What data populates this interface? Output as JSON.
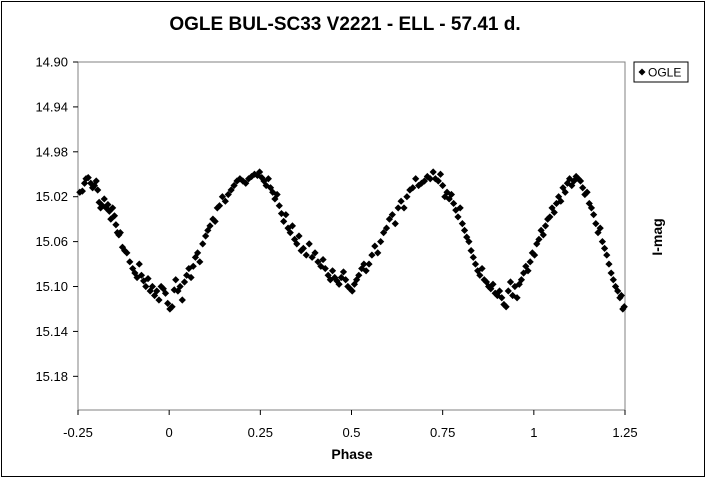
{
  "chart_data": {
    "type": "scatter",
    "title": "OGLE BUL-SC33  V2221 - ELL - 57.41 d.",
    "xlabel": "Phase",
    "ylabel": "I-mag",
    "xlim": [
      -0.25,
      1.25
    ],
    "ylim": [
      14.9,
      15.21
    ],
    "y_inverted": true,
    "x_ticks": [
      "-0.25",
      "0",
      "0.25",
      "0.5",
      "0.75",
      "1",
      "1.25"
    ],
    "x_tick_values": [
      -0.25,
      0,
      0.25,
      0.5,
      0.75,
      1,
      1.25
    ],
    "y_ticks": [
      "14.90",
      "14.94",
      "14.98",
      "15.02",
      "15.06",
      "15.10",
      "15.14",
      "15.18"
    ],
    "y_tick_values": [
      14.9,
      14.94,
      14.98,
      15.02,
      15.06,
      15.1,
      15.14,
      15.18
    ],
    "grid": false,
    "legend_position": "top-right",
    "marker": "diamond",
    "series": [
      {
        "name": "OGLE",
        "color": "#000000",
        "points": [
          [
            -0.245,
            15.016
          ],
          [
            -0.238,
            15.015
          ],
          [
            -0.232,
            15.008
          ],
          [
            -0.228,
            15.004
          ],
          [
            -0.222,
            15.003
          ],
          [
            -0.215,
            15.008
          ],
          [
            -0.21,
            15.012
          ],
          [
            -0.205,
            15.01
          ],
          [
            -0.2,
            15.006
          ],
          [
            -0.196,
            15.014
          ],
          [
            -0.192,
            15.025
          ],
          [
            -0.188,
            15.03
          ],
          [
            -0.183,
            15.028
          ],
          [
            -0.178,
            15.022
          ],
          [
            -0.173,
            15.03
          ],
          [
            -0.168,
            15.027
          ],
          [
            -0.164,
            15.033
          ],
          [
            -0.16,
            15.04
          ],
          [
            -0.155,
            15.03
          ],
          [
            -0.15,
            15.037
          ],
          [
            -0.146,
            15.045
          ],
          [
            -0.142,
            15.052
          ],
          [
            -0.138,
            15.054
          ],
          [
            -0.134,
            15.052
          ],
          [
            -0.128,
            15.065
          ],
          [
            -0.122,
            15.068
          ],
          [
            -0.116,
            15.07
          ],
          [
            -0.108,
            15.078
          ],
          [
            -0.1,
            15.084
          ],
          [
            -0.094,
            15.088
          ],
          [
            -0.088,
            15.092
          ],
          [
            -0.082,
            15.08
          ],
          [
            -0.076,
            15.09
          ],
          [
            -0.07,
            15.095
          ],
          [
            -0.064,
            15.1
          ],
          [
            -0.058,
            15.093
          ],
          [
            -0.052,
            15.104
          ],
          [
            -0.046,
            15.1
          ],
          [
            -0.04,
            15.108
          ],
          [
            -0.034,
            15.104
          ],
          [
            -0.028,
            15.112
          ],
          [
            -0.022,
            15.1
          ],
          [
            -0.016,
            15.102
          ],
          [
            -0.01,
            15.106
          ],
          [
            -0.004,
            15.115
          ],
          [
            0.002,
            15.12
          ],
          [
            0.008,
            15.118
          ],
          [
            0.014,
            15.103
          ],
          [
            0.018,
            15.094
          ],
          [
            0.024,
            15.104
          ],
          [
            0.03,
            15.1
          ],
          [
            0.036,
            15.112
          ],
          [
            0.042,
            15.096
          ],
          [
            0.048,
            15.09
          ],
          [
            0.054,
            15.084
          ],
          [
            0.06,
            15.092
          ],
          [
            0.066,
            15.082
          ],
          [
            0.072,
            15.074
          ],
          [
            0.078,
            15.07
          ],
          [
            0.084,
            15.078
          ],
          [
            0.092,
            15.062
          ],
          [
            0.1,
            15.055
          ],
          [
            0.106,
            15.05
          ],
          [
            0.112,
            15.046
          ],
          [
            0.12,
            15.04
          ],
          [
            0.126,
            15.042
          ],
          [
            0.132,
            15.03
          ],
          [
            0.138,
            15.028
          ],
          [
            0.146,
            15.02
          ],
          [
            0.154,
            15.024
          ],
          [
            0.162,
            15.018
          ],
          [
            0.17,
            15.014
          ],
          [
            0.178,
            15.01
          ],
          [
            0.186,
            15.006
          ],
          [
            0.194,
            15.004
          ],
          [
            0.202,
            15.006
          ],
          [
            0.21,
            15.008
          ],
          [
            0.218,
            15.004
          ],
          [
            0.226,
            15.002
          ],
          [
            0.234,
            15.0
          ],
          [
            0.242,
            15.001
          ],
          [
            0.248,
            14.998
          ],
          [
            0.254,
            15.003
          ],
          [
            0.26,
            15.006
          ],
          [
            0.266,
            15.01
          ],
          [
            0.272,
            15.004
          ],
          [
            0.278,
            15.012
          ],
          [
            0.284,
            15.016
          ],
          [
            0.29,
            15.022
          ],
          [
            0.296,
            15.018
          ],
          [
            0.302,
            15.028
          ],
          [
            0.308,
            15.035
          ],
          [
            0.314,
            15.042
          ],
          [
            0.32,
            15.036
          ],
          [
            0.326,
            15.048
          ],
          [
            0.332,
            15.052
          ],
          [
            0.338,
            15.046
          ],
          [
            0.344,
            15.058
          ],
          [
            0.35,
            15.062
          ],
          [
            0.356,
            15.055
          ],
          [
            0.362,
            15.068
          ],
          [
            0.368,
            15.066
          ],
          [
            0.376,
            15.072
          ],
          [
            0.384,
            15.062
          ],
          [
            0.392,
            15.074
          ],
          [
            0.4,
            15.07
          ],
          [
            0.408,
            15.078
          ],
          [
            0.416,
            15.082
          ],
          [
            0.422,
            15.076
          ],
          [
            0.428,
            15.084
          ],
          [
            0.436,
            15.09
          ],
          [
            0.442,
            15.094
          ],
          [
            0.448,
            15.086
          ],
          [
            0.454,
            15.092
          ],
          [
            0.46,
            15.095
          ],
          [
            0.466,
            15.098
          ],
          [
            0.472,
            15.092
          ],
          [
            0.478,
            15.087
          ],
          [
            0.484,
            15.094
          ],
          [
            0.49,
            15.1
          ],
          [
            0.496,
            15.102
          ],
          [
            0.502,
            15.104
          ],
          [
            0.508,
            15.098
          ],
          [
            0.514,
            15.094
          ],
          [
            0.52,
            15.09
          ],
          [
            0.528,
            15.084
          ],
          [
            0.534,
            15.08
          ],
          [
            0.54,
            15.086
          ],
          [
            0.548,
            15.08
          ],
          [
            0.556,
            15.072
          ],
          [
            0.564,
            15.064
          ],
          [
            0.572,
            15.07
          ],
          [
            0.58,
            15.06
          ],
          [
            0.588,
            15.052
          ],
          [
            0.596,
            15.048
          ],
          [
            0.604,
            15.04
          ],
          [
            0.612,
            15.036
          ],
          [
            0.62,
            15.044
          ],
          [
            0.628,
            15.03
          ],
          [
            0.636,
            15.024
          ],
          [
            0.644,
            15.03
          ],
          [
            0.652,
            15.02
          ],
          [
            0.66,
            15.014
          ],
          [
            0.668,
            15.012
          ],
          [
            0.676,
            15.004
          ],
          [
            0.684,
            15.01
          ],
          [
            0.692,
            15.008
          ],
          [
            0.7,
            15.006
          ],
          [
            0.708,
            15.002
          ],
          [
            0.716,
            15.004
          ],
          [
            0.724,
            14.998
          ],
          [
            0.73,
            15.004
          ],
          [
            0.738,
            15.006
          ],
          [
            0.744,
            15.0
          ],
          [
            0.75,
            15.01
          ],
          [
            0.756,
            15.02
          ],
          [
            0.762,
            15.016
          ],
          [
            0.768,
            15.022
          ],
          [
            0.774,
            15.018
          ],
          [
            0.78,
            15.026
          ],
          [
            0.786,
            15.032
          ],
          [
            0.792,
            15.038
          ],
          [
            0.798,
            15.03
          ],
          [
            0.804,
            15.044
          ],
          [
            0.81,
            15.05
          ],
          [
            0.816,
            15.056
          ],
          [
            0.822,
            15.06
          ],
          [
            0.828,
            15.068
          ],
          [
            0.834,
            15.074
          ],
          [
            0.84,
            15.08
          ],
          [
            0.846,
            15.086
          ],
          [
            0.852,
            15.09
          ],
          [
            0.858,
            15.084
          ],
          [
            0.864,
            15.094
          ],
          [
            0.87,
            15.096
          ],
          [
            0.876,
            15.1
          ],
          [
            0.882,
            15.102
          ],
          [
            0.888,
            15.098
          ],
          [
            0.894,
            15.106
          ],
          [
            0.9,
            15.108
          ],
          [
            0.906,
            15.104
          ],
          [
            0.912,
            15.11
          ],
          [
            0.918,
            15.116
          ],
          [
            0.924,
            15.118
          ],
          [
            0.93,
            15.104
          ],
          [
            0.936,
            15.096
          ],
          [
            0.942,
            15.108
          ],
          [
            0.948,
            15.1
          ],
          [
            0.954,
            15.11
          ],
          [
            0.96,
            15.098
          ],
          [
            0.966,
            15.094
          ],
          [
            0.972,
            15.088
          ],
          [
            0.978,
            15.082
          ],
          [
            0.984,
            15.086
          ],
          [
            0.99,
            15.078
          ],
          [
            0.996,
            15.07
          ],
          [
            1.002,
            15.072
          ],
          [
            1.008,
            15.062
          ],
          [
            1.014,
            15.058
          ],
          [
            1.02,
            15.05
          ],
          [
            1.026,
            15.054
          ],
          [
            1.032,
            15.046
          ],
          [
            1.038,
            15.04
          ],
          [
            1.044,
            15.038
          ],
          [
            1.05,
            15.03
          ],
          [
            1.056,
            15.034
          ],
          [
            1.062,
            15.026
          ],
          [
            1.068,
            15.02
          ],
          [
            1.074,
            15.024
          ],
          [
            1.08,
            15.012
          ],
          [
            1.086,
            15.016
          ],
          [
            1.092,
            15.008
          ],
          [
            1.098,
            15.004
          ],
          [
            1.104,
            15.01
          ],
          [
            1.11,
            15.006
          ],
          [
            1.116,
            15.002
          ],
          [
            1.122,
            15.004
          ],
          [
            1.128,
            15.006
          ],
          [
            1.134,
            15.012
          ],
          [
            1.14,
            15.018
          ],
          [
            1.146,
            15.016
          ],
          [
            1.152,
            15.026
          ],
          [
            1.158,
            15.03
          ],
          [
            1.164,
            15.036
          ],
          [
            1.17,
            15.044
          ],
          [
            1.176,
            15.052
          ],
          [
            1.182,
            15.048
          ],
          [
            1.188,
            15.06
          ],
          [
            1.194,
            15.066
          ],
          [
            1.2,
            15.072
          ],
          [
            1.206,
            15.08
          ],
          [
            1.212,
            15.088
          ],
          [
            1.218,
            15.094
          ],
          [
            1.224,
            15.1
          ],
          [
            1.23,
            15.104
          ],
          [
            1.236,
            15.11
          ],
          [
            1.24,
            15.108
          ],
          [
            1.244,
            15.12
          ],
          [
            1.248,
            15.118
          ]
        ]
      }
    ]
  }
}
